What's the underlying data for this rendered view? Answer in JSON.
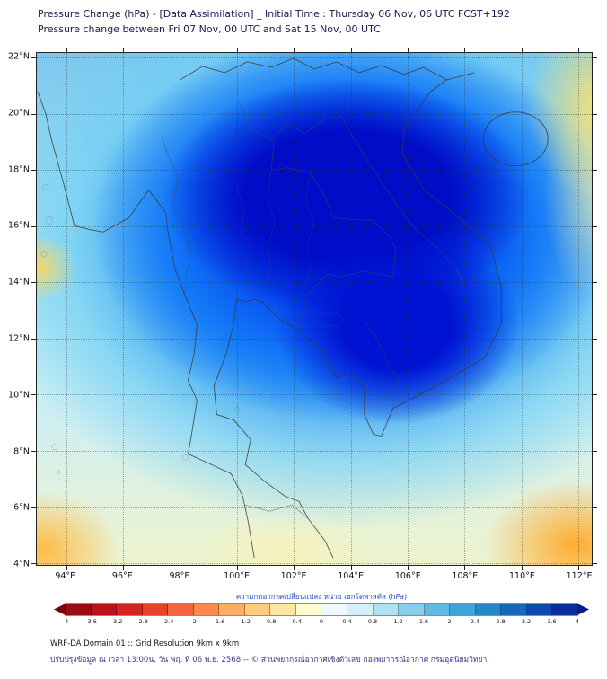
{
  "header": {
    "title_line1": "Pressure Change (hPa) - [Data Assimilation] _ Initial Time : Thursday 06 Nov, 06 UTC FCST+192",
    "title_line2": "Pressure change between Fri 07 Nov, 00 UTC and Sat 15 Nov, 00 UTC"
  },
  "map": {
    "x_ticks": [
      "94°E",
      "96°E",
      "98°E",
      "100°E",
      "102°E",
      "104°E",
      "106°E",
      "108°E",
      "110°E",
      "112°E"
    ],
    "y_ticks": [
      "22°N",
      "20°N",
      "18°N",
      "16°N",
      "14°N",
      "12°N",
      "10°N",
      "8°N",
      "6°N",
      "4°N"
    ]
  },
  "colorbar": {
    "label": "ความกดอากาศเปลี่ยนแปลง หน่วย เฮกโตพาสคัล (hPa)",
    "unit": "hPa",
    "tick_labels": [
      "-4",
      "-3.6",
      "-3.2",
      "-2.8",
      "-2.4",
      "-2",
      "-1.6",
      "-1.2",
      "-0.8",
      "-0.4",
      "0",
      "0.4",
      "0.8",
      "1.2",
      "1.6",
      "2",
      "2.4",
      "2.8",
      "3.2",
      "3.6",
      "4"
    ],
    "arrow_left_color": "#7a0010",
    "arrow_right_color": "#051f85",
    "segment_colors": [
      "#9a0c12",
      "#b81419",
      "#d42420",
      "#e8432a",
      "#f4663a",
      "#fb8a4b",
      "#fdae60",
      "#fecc7b",
      "#fee79e",
      "#fffbd0",
      "#eef9fb",
      "#d2f0f7",
      "#aee2f2",
      "#86d0ec",
      "#5fbbe4",
      "#3da3da",
      "#2387cd",
      "#1468bd",
      "#0c4aab",
      "#082f9b"
    ]
  },
  "footer": {
    "line1": "WRF-DA Domain 01 :: Grid Resolution 9km x 9km",
    "line2": "ปรับปรุงข้อมูล ณ เวลา 13:00น. วัน พฤ. ที่ 06 พ.ย. 2568 -- © ส่วนพยากรณ์อากาศเชิงตัวเลข กองพยากรณ์อากาศ กรมอุตุนิยมวิทยา"
  },
  "field_colors": {
    "deep_blue": "#000fc8",
    "mid_blue": "#0a6efa",
    "light_cyan": "#b9eaf3",
    "edge_yellow": "#ffd95a",
    "corner_orange": "#ffaa28"
  }
}
